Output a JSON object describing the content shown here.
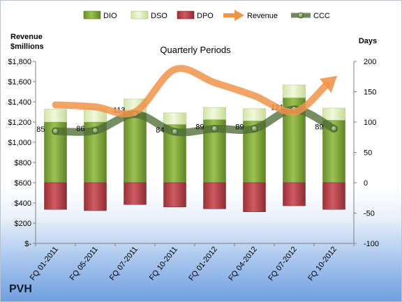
{
  "chart_data": {
    "type": "bar",
    "title": "Quarterly Periods",
    "company": "PVH",
    "left_axis_label": [
      "Revenue",
      "$millions"
    ],
    "right_axis_label": "Days",
    "legend_position": "top",
    "categories": [
      "FQ 01-2011",
      "FQ 05-2011",
      "FQ 07-2011",
      "FQ 10-2011",
      "FQ 01-2012",
      "FQ 04-2012",
      "FQ 07-2012",
      "FQ 10-2012"
    ],
    "left_axis": {
      "min": 0,
      "max": 1800,
      "step": 200,
      "ticks": [
        0,
        200,
        400,
        600,
        800,
        1000,
        1200,
        1400,
        1600,
        1800
      ],
      "tick_labels": [
        "$-",
        "$200",
        "$400",
        "$600",
        "$800",
        "$1,000",
        "$1,200",
        "$1,400",
        "$1,600",
        "$1,800"
      ]
    },
    "right_axis": {
      "min": -100,
      "max": 200,
      "step": 50,
      "ticks": [
        -100,
        -50,
        0,
        50,
        100,
        150,
        200
      ],
      "tick_labels": [
        "-100",
        "-50",
        "0",
        "50",
        "100",
        "150",
        "200"
      ]
    },
    "series": [
      {
        "name": "DIO",
        "axis": "right",
        "kind": "stacked-bar",
        "color": "#7ea33a",
        "values": [
          100,
          100,
          115,
          96,
          104,
          102,
          140,
          103
        ]
      },
      {
        "name": "DSO",
        "axis": "right",
        "kind": "stacked-bar",
        "color": "#e2f0c2",
        "values": [
          21,
          22,
          23,
          19,
          20,
          20,
          21,
          20
        ]
      },
      {
        "name": "DPO",
        "axis": "right",
        "kind": "bar-negative",
        "color": "#b0434a",
        "values": [
          -44,
          -46,
          -36,
          -40,
          -43,
          -48,
          -38,
          -44
        ]
      },
      {
        "name": "Revenue",
        "axis": "left",
        "kind": "line-arrow",
        "color": "#f0944a",
        "values": [
          1370,
          1350,
          1300,
          1720,
          1590,
          1460,
          1300,
          1630
        ]
      },
      {
        "name": "CCC",
        "axis": "right",
        "kind": "line-marker",
        "color": "#4f6b34",
        "values": [
          85,
          86,
          113,
          84,
          89,
          89,
          121,
          89
        ]
      }
    ],
    "data_labels": {
      "series": "CCC",
      "values": [
        "85",
        "86",
        "113",
        "84",
        "89",
        "89",
        "121",
        "89"
      ]
    },
    "grid": false
  }
}
